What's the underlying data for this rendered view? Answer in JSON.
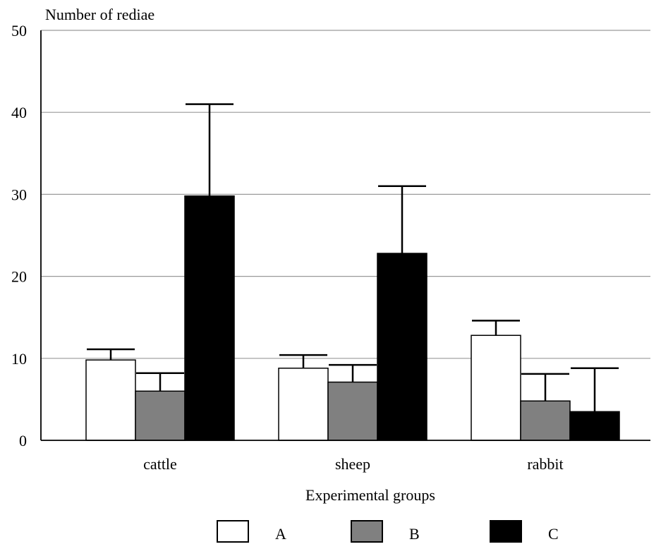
{
  "chart_data": {
    "type": "bar",
    "ylabel": "Number of rediae",
    "xlabel": "Experimental groups",
    "ylim": [
      0,
      50
    ],
    "yticks": [
      0,
      10,
      20,
      30,
      40,
      50
    ],
    "categories": [
      "cattle",
      "sheep",
      "rabbit"
    ],
    "series": [
      {
        "name": "A",
        "values": [
          9.8,
          8.8,
          12.8
        ],
        "errors": [
          1.3,
          1.6,
          1.8
        ],
        "color": "#ffffff"
      },
      {
        "name": "B",
        "values": [
          6.0,
          7.1,
          4.8
        ],
        "errors": [
          2.2,
          2.1,
          3.3
        ],
        "color": "#808080"
      },
      {
        "name": "C",
        "values": [
          29.8,
          22.8,
          3.5
        ],
        "errors": [
          11.2,
          8.2,
          5.3
        ],
        "color": "#000000"
      }
    ],
    "grid": "horizontal",
    "legend_position": "bottom"
  }
}
